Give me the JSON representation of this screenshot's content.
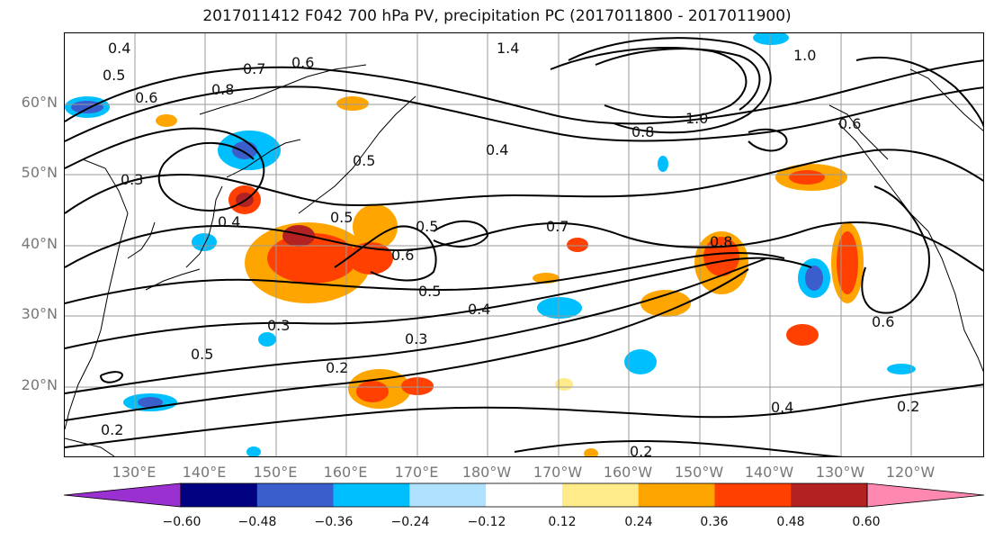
{
  "title": "2017011412 F042 700 hPa PV, precipitation PC (2017011800 - 2017011900)",
  "map": {
    "lat_labels": [
      {
        "text": "60°N",
        "lat": 60
      },
      {
        "text": "50°N",
        "lat": 50
      },
      {
        "text": "40°N",
        "lat": 40
      },
      {
        "text": "30°N",
        "lat": 30
      },
      {
        "text": "20°N",
        "lat": 20
      }
    ],
    "lon_labels": [
      {
        "text": "130°E",
        "lon": 130
      },
      {
        "text": "140°E",
        "lon": 140
      },
      {
        "text": "150°E",
        "lon": 150
      },
      {
        "text": "160°E",
        "lon": 160
      },
      {
        "text": "170°E",
        "lon": 170
      },
      {
        "text": "180°W",
        "lon": 180
      },
      {
        "text": "170°W",
        "lon": 190
      },
      {
        "text": "160°W",
        "lon": 200
      },
      {
        "text": "150°W",
        "lon": 210
      },
      {
        "text": "140°W",
        "lon": 220
      },
      {
        "text": "130°W",
        "lon": 230
      },
      {
        "text": "120°W",
        "lon": 240
      }
    ],
    "contour_labels": [
      "0.4",
      "0.5",
      "0.6",
      "0.7",
      "0.8",
      "0.6",
      "0.3",
      "0.4",
      "0.5",
      "0.5",
      "0.4",
      "0.5",
      "0.7",
      "0.6",
      "0.5",
      "0.4",
      "0.3",
      "0.2",
      "0.3",
      "0.5",
      "0.2",
      "0.4",
      "0.2",
      "0.2",
      "0.8",
      "0.6",
      "1.0",
      "1.4",
      "1.0",
      "0.8",
      "0.6"
    ]
  },
  "colorbar": {
    "ticks": [
      "−0.60",
      "−0.48",
      "−0.36",
      "−0.24",
      "−0.12",
      "0.12",
      "0.24",
      "0.36",
      "0.48",
      "0.60"
    ],
    "colors": [
      "#9b30d0",
      "#000080",
      "#3a5fcd",
      "#00bfff",
      "#b0e2ff",
      "#ffffff",
      "#ffeb8a",
      "#ffa500",
      "#ff4000",
      "#b22222",
      "#ff88b0"
    ]
  }
}
